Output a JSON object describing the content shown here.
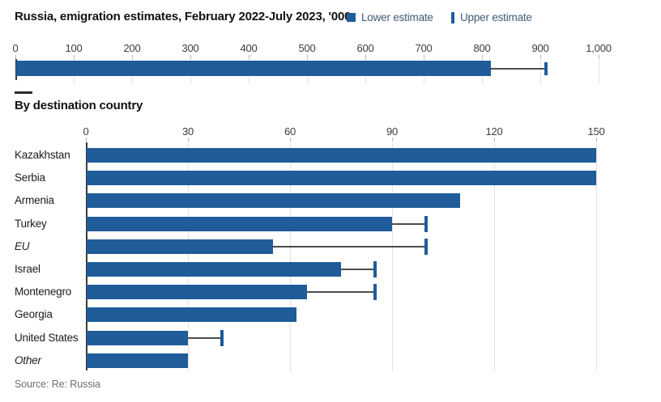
{
  "title": "Russia, emigration estimates, February 2022-July 2023, '000",
  "legend": {
    "position": "top-right",
    "items": [
      {
        "label": "Lower estimate",
        "swatch": "square"
      },
      {
        "label": "Upper estimate",
        "swatch": "vertical-bar"
      }
    ]
  },
  "section_heading": "By destination country",
  "source": "Source: Re: Russia",
  "colors": {
    "bar": "#1f5c99",
    "whisker_line": "#4d4d4d",
    "grid": "#e2e2e2",
    "axis_line": "#3a3a3a",
    "axis_text": "#3c3c3c",
    "category_text": "#1c1c1c",
    "legend_text": "#3d5a78",
    "title_text": "#121212",
    "source_text": "#6e6e6e"
  },
  "chart_data": [
    {
      "type": "bar",
      "orientation": "horizontal",
      "title": "Russia, emigration estimates, February 2022-July 2023, '000",
      "legend_entries": [
        "Lower estimate",
        "Upper estimate"
      ],
      "axis": {
        "min": 0,
        "max": 1000,
        "tick_step": 100,
        "tick_labels": [
          "0",
          "100",
          "200",
          "300",
          "400",
          "500",
          "600",
          "700",
          "800",
          "900",
          "1,000"
        ]
      },
      "grid": true,
      "rows": [
        {
          "label": "",
          "italic": false,
          "lower": 815,
          "upper": 910
        }
      ]
    },
    {
      "type": "bar",
      "orientation": "horizontal",
      "title": "By destination country",
      "axis": {
        "min": 0,
        "max": 150,
        "tick_step": 30,
        "tick_labels": [
          "0",
          "30",
          "60",
          "90",
          "120",
          "150"
        ]
      },
      "grid": true,
      "rows": [
        {
          "label": "Kazakhstan",
          "italic": false,
          "lower": 150,
          "upper": null
        },
        {
          "label": "Serbia",
          "italic": false,
          "lower": 150,
          "upper": null
        },
        {
          "label": "Armenia",
          "italic": false,
          "lower": 110,
          "upper": null
        },
        {
          "label": "Turkey",
          "italic": false,
          "lower": 90,
          "upper": 100
        },
        {
          "label": "EU",
          "italic": true,
          "lower": 55,
          "upper": 100
        },
        {
          "label": "Israel",
          "italic": false,
          "lower": 75,
          "upper": 85
        },
        {
          "label": "Montenegro",
          "italic": false,
          "lower": 65,
          "upper": 85
        },
        {
          "label": "Georgia",
          "italic": false,
          "lower": 62,
          "upper": null
        },
        {
          "label": "United States",
          "italic": false,
          "lower": 30,
          "upper": 40
        },
        {
          "label": "Other",
          "italic": true,
          "lower": 30,
          "upper": null
        }
      ]
    }
  ]
}
